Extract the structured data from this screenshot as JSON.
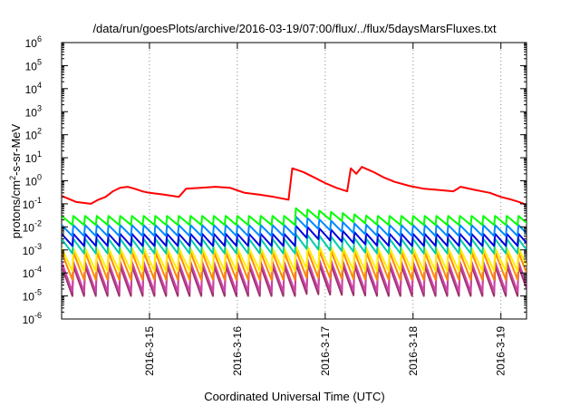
{
  "chart_data": {
    "type": "line",
    "title": "/data/run/goesPlots/archive/2016-03-19/07:00/flux/../flux/5daysMarsFluxes.txt",
    "xlabel": "Coordinated Universal Time (UTC)",
    "ylabel": "protons/cm²-s-sr-MeV",
    "ylabel_parts": {
      "before": "protons/cm",
      "sup": "2",
      "after": "-s-sr-MeV"
    },
    "yscale": "log",
    "ylim": [
      1e-06,
      1000000.0
    ],
    "y_ticks": [
      {
        "base": "10",
        "exp": "-6",
        "value": 1e-06
      },
      {
        "base": "10",
        "exp": "-5",
        "value": 1e-05
      },
      {
        "base": "10",
        "exp": "-4",
        "value": 0.0001
      },
      {
        "base": "10",
        "exp": "-3",
        "value": 0.001
      },
      {
        "base": "10",
        "exp": "-2",
        "value": 0.01
      },
      {
        "base": "10",
        "exp": "-1",
        "value": 0.1
      },
      {
        "base": "10",
        "exp": "0",
        "value": 1
      },
      {
        "base": "10",
        "exp": "1",
        "value": 10
      },
      {
        "base": "10",
        "exp": "2",
        "value": 100
      },
      {
        "base": "10",
        "exp": "3",
        "value": 1000
      },
      {
        "base": "10",
        "exp": "4",
        "value": 10000
      },
      {
        "base": "10",
        "exp": "5",
        "value": 100000
      },
      {
        "base": "10",
        "exp": "6",
        "value": 1000000
      }
    ],
    "x_start": "2016-03-14T00:00",
    "x_end": "2016-03-19T07:00",
    "x_ticks": [
      {
        "label": "2016-3-15",
        "t": "2016-03-15T00:00"
      },
      {
        "label": "2016-3-16",
        "t": "2016-03-16T00:00"
      },
      {
        "label": "2016-3-17",
        "t": "2016-03-17T00:00"
      },
      {
        "label": "2016-3-18",
        "t": "2016-03-18T00:00"
      },
      {
        "label": "2016-3-19",
        "t": "2016-03-19T00:00"
      }
    ],
    "grid": {
      "x": true,
      "y": false,
      "style": "dotted"
    },
    "legend": "none",
    "sawtooth_period_hours": 3.2,
    "series": [
      {
        "color": "#ff0000",
        "points": [
          [
            "2016-03-14T00:00",
            0.22
          ],
          [
            "2016-03-14T04:00",
            0.12
          ],
          [
            "2016-03-14T08:00",
            0.1
          ],
          [
            "2016-03-14T10:00",
            0.15
          ],
          [
            "2016-03-14T12:00",
            0.2
          ],
          [
            "2016-03-14T14:00",
            0.35
          ],
          [
            "2016-03-14T16:00",
            0.5
          ],
          [
            "2016-03-14T18:00",
            0.55
          ],
          [
            "2016-03-14T20:00",
            0.45
          ],
          [
            "2016-03-14T22:00",
            0.35
          ],
          [
            "2016-03-15T00:00",
            0.3
          ],
          [
            "2016-03-15T04:00",
            0.25
          ],
          [
            "2016-03-15T08:00",
            0.2
          ],
          [
            "2016-03-15T10:00",
            0.45
          ],
          [
            "2016-03-15T14:00",
            0.5
          ],
          [
            "2016-03-15T18:00",
            0.55
          ],
          [
            "2016-03-15T22:00",
            0.5
          ],
          [
            "2016-03-16T02:00",
            0.3
          ],
          [
            "2016-03-16T06:00",
            0.25
          ],
          [
            "2016-03-16T10:00",
            0.2
          ],
          [
            "2016-03-16T14:00",
            0.15
          ],
          [
            "2016-03-16T15:00",
            3.5
          ],
          [
            "2016-03-16T18:00",
            2.4
          ],
          [
            "2016-03-16T21:00",
            1.4
          ],
          [
            "2016-03-17T00:00",
            0.8
          ],
          [
            "2016-03-17T03:00",
            0.5
          ],
          [
            "2016-03-17T06:00",
            0.35
          ],
          [
            "2016-03-17T07:00",
            3.5
          ],
          [
            "2016-03-17T08:30",
            2.0
          ],
          [
            "2016-03-17T10:00",
            4.0
          ],
          [
            "2016-03-17T13:00",
            2.5
          ],
          [
            "2016-03-17T16:00",
            1.4
          ],
          [
            "2016-03-17T19:00",
            0.9
          ],
          [
            "2016-03-17T23:00",
            0.6
          ],
          [
            "2016-03-18T03:00",
            0.45
          ],
          [
            "2016-03-18T07:00",
            0.4
          ],
          [
            "2016-03-18T11:00",
            0.35
          ],
          [
            "2016-03-18T13:00",
            0.55
          ],
          [
            "2016-03-18T17:00",
            0.4
          ],
          [
            "2016-03-18T21:00",
            0.3
          ],
          [
            "2016-03-19T00:00",
            0.2
          ],
          [
            "2016-03-19T03:00",
            0.15
          ],
          [
            "2016-03-19T05:00",
            0.12
          ],
          [
            "2016-03-19T07:00",
            0.09
          ]
        ]
      },
      {
        "color": "#00ff00",
        "peak": 0.03,
        "trough": 0.012,
        "bump_peak": 0.07
      },
      {
        "color": "#0088ff",
        "peak": 0.012,
        "trough": 0.004,
        "bump_peak": 0.03
      },
      {
        "color": "#0000dd",
        "peak": 0.005,
        "trough": 0.0015,
        "bump_peak": 0.012
      },
      {
        "color": "#00ccaa",
        "peak": 0.003,
        "trough": 0.0007,
        "bump_peak": 0.005
      },
      {
        "color": "#ffee00",
        "peak": 0.0012,
        "trough": 0.00012,
        "bump_peak": 0.0015
      },
      {
        "color": "#ff8800",
        "peak": 0.0008,
        "trough": 5e-05,
        "bump_peak": 0.001
      },
      {
        "color": "#cc44aa",
        "peak": 0.0003,
        "trough": 1.5e-05,
        "bump_peak": 0.0004
      },
      {
        "color": "#993366",
        "peak": 0.0002,
        "trough": 1e-05,
        "bump_peak": 0.00025
      }
    ]
  }
}
